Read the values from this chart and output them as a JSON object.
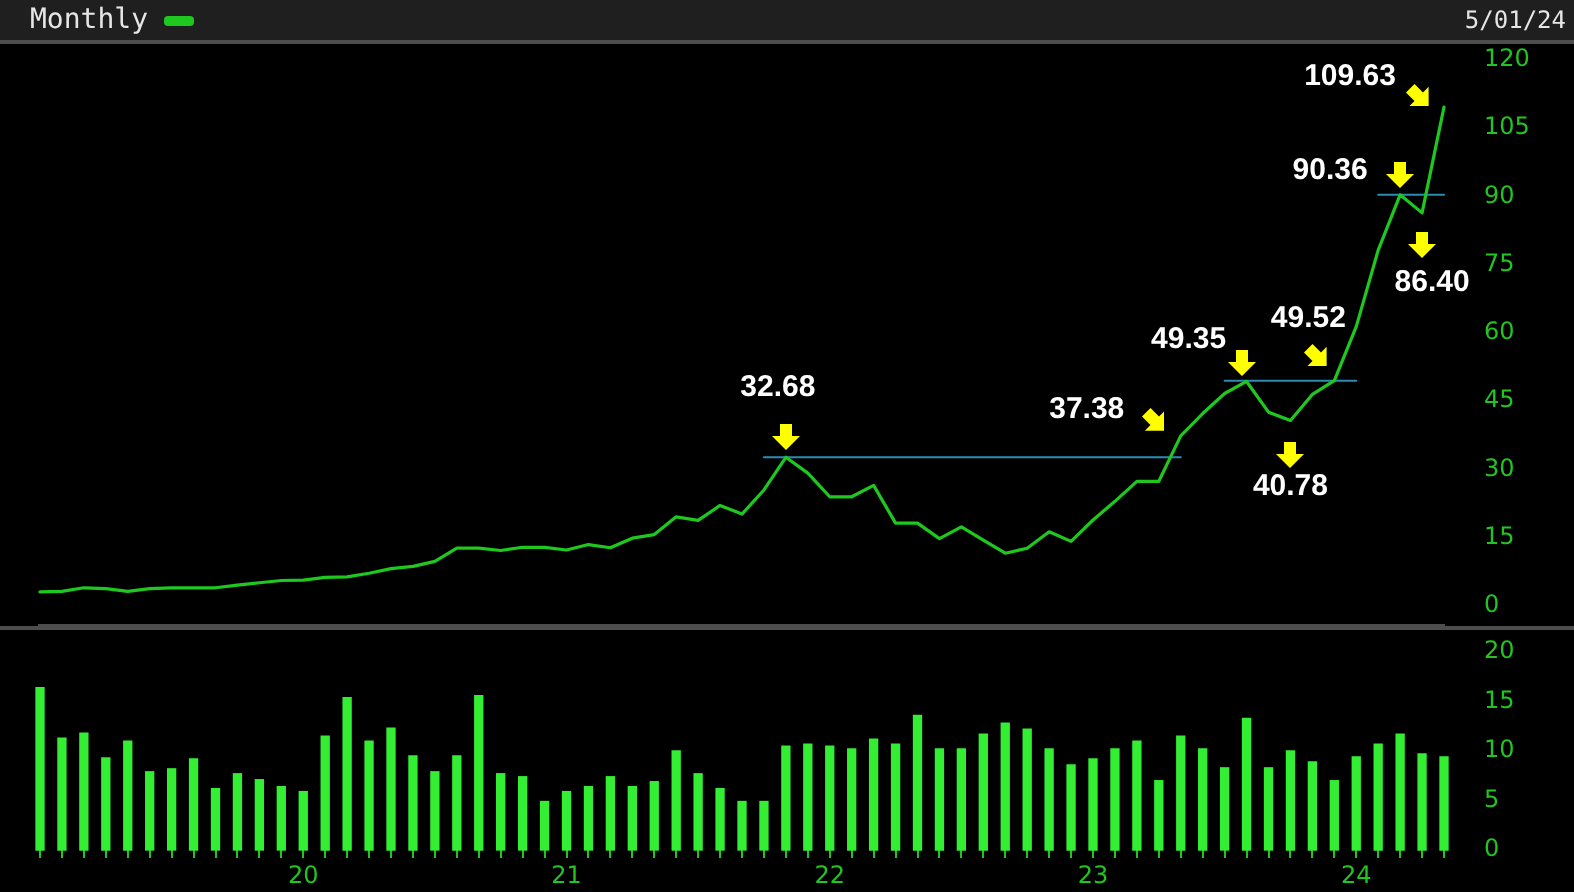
{
  "chart_data": [
    {
      "type": "line",
      "title": "Monthly",
      "subtitle": "5/01/24",
      "x": [
        "2019-01",
        "2019-02",
        "2019-03",
        "2019-04",
        "2019-05",
        "2019-06",
        "2019-07",
        "2019-08",
        "2019-09",
        "2019-10",
        "2019-11",
        "2019-12",
        "2020-01",
        "2020-02",
        "2020-03",
        "2020-04",
        "2020-05",
        "2020-06",
        "2020-07",
        "2020-08",
        "2020-09",
        "2020-10",
        "2020-11",
        "2020-12",
        "2021-01",
        "2021-02",
        "2021-03",
        "2021-04",
        "2021-05",
        "2021-06",
        "2021-07",
        "2021-08",
        "2021-09",
        "2021-10",
        "2021-11",
        "2021-12",
        "2022-01",
        "2022-02",
        "2022-03",
        "2022-04",
        "2022-05",
        "2022-06",
        "2022-07",
        "2022-08",
        "2022-09",
        "2022-10",
        "2022-11",
        "2022-12",
        "2023-01",
        "2023-02",
        "2023-03",
        "2023-04",
        "2023-05",
        "2023-06",
        "2023-07",
        "2023-08",
        "2023-09",
        "2023-10",
        "2023-11",
        "2023-12",
        "2024-01",
        "2024-02",
        "2024-03",
        "2024-04",
        "2024-05"
      ],
      "series": [
        {
          "color": "#1ec81e",
          "values": [
            3.1,
            3.2,
            4.0,
            3.8,
            3.2,
            3.8,
            4.0,
            4.0,
            4.0,
            4.6,
            5.1,
            5.6,
            5.7,
            6.3,
            6.4,
            7.2,
            8.2,
            8.7,
            9.8,
            12.7,
            12.7,
            12.2,
            12.9,
            12.9,
            12.3,
            13.5,
            12.8,
            14.9,
            15.7,
            19.6,
            18.8,
            22.1,
            20.2,
            25.5,
            32.68,
            29.2,
            24.0,
            24.0,
            26.5,
            18.2,
            18.2,
            14.8,
            17.4,
            14.5,
            11.6,
            12.7,
            16.3,
            14.2,
            18.9,
            23.0,
            27.4,
            27.4,
            37.38,
            42.3,
            46.7,
            49.35,
            42.6,
            40.78,
            46.5,
            49.52,
            61.4,
            78.2,
            90.36,
            86.4,
            109.63
          ]
        },
        {
          "type": "line",
          "color": "#2c8cb0",
          "x": [
            "2021-10",
            "2023-05"
          ],
          "values": [
            32.7,
            32.7
          ]
        },
        {
          "type": "line",
          "color": "#2c8cb0",
          "x": [
            "2023-07",
            "2024-01"
          ],
          "values": [
            49.5,
            49.5
          ]
        },
        {
          "type": "line",
          "color": "#2c8cb0",
          "x": [
            "2024-02",
            "2024-05"
          ],
          "values": [
            90.4,
            90.4
          ]
        }
      ],
      "xlim": [
        "2019-01",
        "2024-05"
      ],
      "ylim": [
        -4.4,
        120
      ],
      "yticks": [
        0,
        15,
        30,
        45,
        60,
        75,
        90,
        105,
        120
      ],
      "tick_labels": "y",
      "annotations": [
        {
          "text": "32.68",
          "x": "2021-11",
          "y": 32.68
        },
        {
          "text": "37.38",
          "x": "2023-05",
          "y": 37.38
        },
        {
          "text": "49.35",
          "x": "2023-08",
          "y": 49.35
        },
        {
          "text": "40.78",
          "x": "2023-10",
          "y": 40.78
        },
        {
          "text": "49.52",
          "x": "2023-12",
          "y": 49.52
        },
        {
          "text": "90.36",
          "x": "2024-03",
          "y": 90.36
        },
        {
          "text": "86.40",
          "x": "2024-04",
          "y": 86.4
        },
        {
          "text": "109.63",
          "x": "2024-05",
          "y": 109.63
        }
      ]
    },
    {
      "type": "bar",
      "x": [
        "2019-01",
        "2019-02",
        "2019-03",
        "2019-04",
        "2019-05",
        "2019-06",
        "2019-07",
        "2019-08",
        "2019-09",
        "2019-10",
        "2019-11",
        "2019-12",
        "2020-01",
        "2020-02",
        "2020-03",
        "2020-04",
        "2020-05",
        "2020-06",
        "2020-07",
        "2020-08",
        "2020-09",
        "2020-10",
        "2020-11",
        "2020-12",
        "2021-01",
        "2021-02",
        "2021-03",
        "2021-04",
        "2021-05",
        "2021-06",
        "2021-07",
        "2021-08",
        "2021-09",
        "2021-10",
        "2021-11",
        "2021-12",
        "2022-01",
        "2022-02",
        "2022-03",
        "2022-04",
        "2022-05",
        "2022-06",
        "2022-07",
        "2022-08",
        "2022-09",
        "2022-10",
        "2022-11",
        "2022-12",
        "2023-01",
        "2023-02",
        "2023-03",
        "2023-04",
        "2023-05",
        "2023-06",
        "2023-07",
        "2023-08",
        "2023-09",
        "2023-10",
        "2023-11",
        "2023-12",
        "2024-01",
        "2024-02",
        "2024-03",
        "2024-04",
        "2024-05"
      ],
      "values": [
        16.4,
        11.3,
        11.8,
        9.3,
        11.0,
        7.9,
        8.2,
        9.2,
        6.2,
        7.7,
        7.1,
        6.4,
        5.9,
        11.5,
        15.4,
        11.0,
        12.3,
        9.5,
        7.9,
        9.5,
        15.6,
        7.7,
        7.4,
        4.9,
        5.9,
        6.4,
        7.4,
        6.4,
        6.9,
        10.0,
        7.7,
        6.2,
        4.9,
        4.9,
        10.5,
        10.7,
        10.5,
        10.2,
        11.2,
        10.7,
        13.6,
        10.2,
        10.2,
        11.7,
        12.8,
        12.2,
        10.2,
        8.6,
        9.2,
        10.2,
        11.0,
        7.0,
        11.5,
        10.2,
        8.3,
        13.3,
        8.3,
        10.0,
        8.9,
        7.0,
        9.4,
        10.7,
        11.7,
        9.7,
        9.4
      ],
      "color": "#33ee33",
      "xlim": [
        "2019-01",
        "2024-05"
      ],
      "ylim": [
        0,
        20
      ],
      "yticks": [
        0,
        5,
        10,
        15,
        20
      ],
      "xticks": [
        {
          "value": "2019-01",
          "label": null
        },
        {
          "value": "2019-02",
          "label": null
        },
        {
          "value": "2019-03",
          "label": null
        },
        {
          "value": "2019-04",
          "label": null
        },
        {
          "value": "2019-05",
          "label": null
        },
        {
          "value": "2019-06",
          "label": null
        },
        {
          "value": "2019-07",
          "label": null
        },
        {
          "value": "2019-08",
          "label": null
        },
        {
          "value": "2019-09",
          "label": null
        },
        {
          "value": "2019-10",
          "label": null
        },
        {
          "value": "2019-11",
          "label": null
        },
        {
          "value": "2019-12",
          "label": null
        },
        {
          "value": "2020-01",
          "label": "20"
        },
        {
          "value": "2020-02",
          "label": null
        },
        {
          "value": "2020-03",
          "label": null
        },
        {
          "value": "2020-04",
          "label": null
        },
        {
          "value": "2020-05",
          "label": null
        },
        {
          "value": "2020-06",
          "label": null
        },
        {
          "value": "2020-07",
          "label": null
        },
        {
          "value": "2020-08",
          "label": null
        },
        {
          "value": "2020-09",
          "label": null
        },
        {
          "value": "2020-10",
          "label": null
        },
        {
          "value": "2020-11",
          "label": null
        },
        {
          "value": "2020-12",
          "label": null
        },
        {
          "value": "2021-01",
          "label": "21"
        },
        {
          "value": "2021-02",
          "label": null
        },
        {
          "value": "2021-03",
          "label": null
        },
        {
          "value": "2021-04",
          "label": null
        },
        {
          "value": "2021-05",
          "label": null
        },
        {
          "value": "2021-06",
          "label": null
        },
        {
          "value": "2021-07",
          "label": null
        },
        {
          "value": "2021-08",
          "label": null
        },
        {
          "value": "2021-09",
          "label": null
        },
        {
          "value": "2021-10",
          "label": null
        },
        {
          "value": "2021-11",
          "label": null
        },
        {
          "value": "2021-12",
          "label": null
        },
        {
          "value": "2022-01",
          "label": "22"
        },
        {
          "value": "2022-02",
          "label": null
        },
        {
          "value": "2022-03",
          "label": null
        },
        {
          "value": "2022-04",
          "label": null
        },
        {
          "value": "2022-05",
          "label": null
        },
        {
          "value": "2022-06",
          "label": null
        },
        {
          "value": "2022-07",
          "label": null
        },
        {
          "value": "2022-08",
          "label": null
        },
        {
          "value": "2022-09",
          "label": null
        },
        {
          "value": "2022-10",
          "label": null
        },
        {
          "value": "2022-11",
          "label": null
        },
        {
          "value": "2022-12",
          "label": null
        },
        {
          "value": "2023-01",
          "label": "23"
        },
        {
          "value": "2023-02",
          "label": null
        },
        {
          "value": "2023-03",
          "label": null
        },
        {
          "value": "2023-04",
          "label": null
        },
        {
          "value": "2023-05",
          "label": null
        },
        {
          "value": "2023-06",
          "label": null
        },
        {
          "value": "2023-07",
          "label": null
        },
        {
          "value": "2023-08",
          "label": null
        },
        {
          "value": "2023-09",
          "label": null
        },
        {
          "value": "2023-10",
          "label": null
        },
        {
          "value": "2023-11",
          "label": null
        },
        {
          "value": "2023-12",
          "label": null
        },
        {
          "value": "2024-01",
          "label": "24"
        },
        {
          "value": "2024-02",
          "label": null
        },
        {
          "value": "2024-03",
          "label": null
        },
        {
          "value": "2024-04",
          "label": null
        },
        {
          "value": "2024-05",
          "label": null
        }
      ]
    }
  ]
}
